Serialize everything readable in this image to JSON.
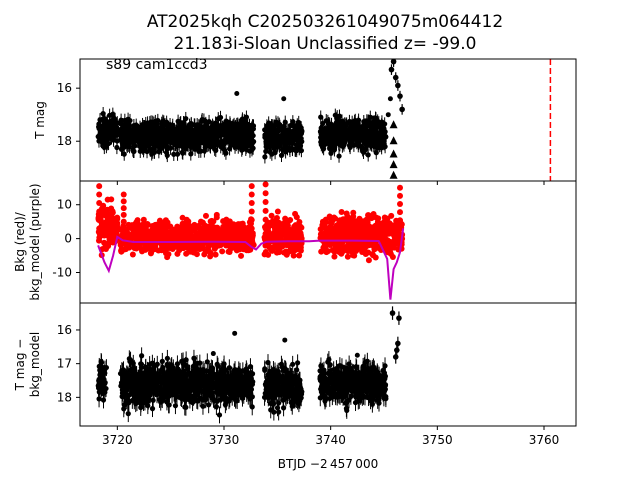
{
  "title": {
    "line1": "AT2025kqh  C202503261049075m064412",
    "line2": "21.183i-Sloan Unclassified z= -99.0"
  },
  "annotation": "s89 cam1ccd3",
  "xlabel": "BTJD −2 457 000",
  "colors": {
    "flux": "#000000",
    "bkg": "#ff0000",
    "bkg_model": "#bf00bf",
    "marker_line": "#ff0000"
  },
  "chart_data": [
    {
      "type": "scatter",
      "panel": "top",
      "ylabel": "T mag",
      "ylim": [
        19.5,
        14.9
      ],
      "y_inverted": true,
      "yticks": [
        16,
        18
      ],
      "xlim": [
        3716.5,
        3763.0
      ],
      "xticks": [
        3720,
        3730,
        3740,
        3750,
        3760
      ],
      "vline_x": 3760.6,
      "series": [
        {
          "segments": [
            {
              "x_start": 3718.2,
              "x_end": 3720.0,
              "y_center": 17.6,
              "spread": 0.55
            },
            {
              "x_start": 3720.3,
              "x_end": 3732.8,
              "y_center": 17.8,
              "spread": 0.55
            },
            {
              "x_start": 3733.8,
              "x_end": 3737.3,
              "y_center": 17.9,
              "spread": 0.6
            },
            {
              "x_start": 3739.0,
              "x_end": 3745.2,
              "y_center": 17.75,
              "spread": 0.55
            }
          ],
          "outliers": [
            {
              "x": 3731.2,
              "y": 16.2
            },
            {
              "x": 3735.6,
              "y": 16.4
            },
            {
              "x": 3745.4,
              "y": 17.0
            },
            {
              "x": 3745.6,
              "y": 16.4
            }
          ],
          "flare": [
            {
              "x": 3745.7,
              "y": 15.3
            },
            {
              "x": 3745.9,
              "y": 15.0
            },
            {
              "x": 3746.1,
              "y": 15.6
            },
            {
              "x": 3746.3,
              "y": 15.9
            },
            {
              "x": 3746.5,
              "y": 16.3
            },
            {
              "x": 3746.7,
              "y": 16.8
            }
          ],
          "upper_limits": [
            {
              "x": 3745.9,
              "y": 17.4
            },
            {
              "x": 3745.9,
              "y": 18.0
            },
            {
              "x": 3745.9,
              "y": 18.5
            },
            {
              "x": 3745.9,
              "y": 18.9
            },
            {
              "x": 3745.9,
              "y": 19.3
            }
          ]
        }
      ]
    },
    {
      "type": "scatter",
      "panel": "middle",
      "ylabel": "Bkg (red)/\nbkg_model (purple)",
      "ylim": [
        -19.0,
        17.0
      ],
      "yticks": [
        10,
        0,
        -10
      ],
      "xlim": [
        3716.5,
        3763.0
      ],
      "series": [
        {
          "name": "Bkg",
          "segments": [
            {
              "x_start": 3718.2,
              "x_end": 3720.0,
              "y_center": 3.0,
              "spread": 6.0
            },
            {
              "x_start": 3720.3,
              "x_end": 3732.8,
              "y_center": 0.5,
              "spread": 4.5
            },
            {
              "x_start": 3733.8,
              "x_end": 3737.3,
              "y_center": 0.5,
              "spread": 5.0
            },
            {
              "x_start": 3739.0,
              "x_end": 3746.7,
              "y_center": 1.0,
              "spread": 5.5
            }
          ],
          "spikes": [
            {
              "x": 3718.3,
              "y": 15.5
            },
            {
              "x": 3720.6,
              "y": 13.0
            },
            {
              "x": 3732.6,
              "y": 15.5
            },
            {
              "x": 3733.9,
              "y": 16.0
            },
            {
              "x": 3746.5,
              "y": 15.0
            }
          ]
        },
        {
          "name": "bkg_model",
          "x": [
            3718.2,
            3718.8,
            3719.2,
            3719.6,
            3720.0,
            3720.5,
            3721.5,
            3725.0,
            3729.0,
            3732.0,
            3732.6,
            3733.0,
            3733.5,
            3734.0,
            3736.0,
            3738.0,
            3739.0,
            3742.0,
            3744.5,
            3745.3,
            3745.6,
            3745.9,
            3746.2,
            3746.5,
            3746.8
          ],
          "y": [
            -2.0,
            -7.0,
            -9.5,
            -5.0,
            0.5,
            -0.5,
            -1.0,
            -1.0,
            -0.9,
            -1.0,
            -2.5,
            -3.2,
            -1.5,
            -0.9,
            -0.8,
            -0.8,
            -0.6,
            -0.6,
            -0.7,
            -6.0,
            -18.0,
            -9.0,
            -7.0,
            -4.0,
            3.0
          ]
        }
      ]
    },
    {
      "type": "scatter",
      "panel": "bottom",
      "ylabel": "T mag −\nbkg_model",
      "ylim": [
        18.85,
        15.2
      ],
      "y_inverted": true,
      "yticks": [
        16,
        17,
        18
      ],
      "xlim": [
        3716.5,
        3763.0
      ],
      "xticks": [
        3720,
        3730,
        3740,
        3750,
        3760
      ],
      "series": [
        {
          "segments": [
            {
              "x_start": 3718.2,
              "x_end": 3719.0,
              "y_center": 17.5,
              "spread": 0.55
            },
            {
              "x_start": 3720.3,
              "x_end": 3732.8,
              "y_center": 17.6,
              "spread": 0.6
            },
            {
              "x_start": 3733.8,
              "x_end": 3737.3,
              "y_center": 17.7,
              "spread": 0.6
            },
            {
              "x_start": 3739.0,
              "x_end": 3745.2,
              "y_center": 17.6,
              "spread": 0.55
            }
          ],
          "outliers": [
            {
              "x": 3731.0,
              "y": 16.1
            },
            {
              "x": 3735.7,
              "y": 16.3
            },
            {
              "x": 3729.0,
              "y": 16.7
            },
            {
              "x": 3742.5,
              "y": 16.75
            }
          ],
          "flare": [
            {
              "x": 3745.8,
              "y": 15.5
            },
            {
              "x": 3746.4,
              "y": 15.65
            },
            {
              "x": 3746.3,
              "y": 16.4
            },
            {
              "x": 3746.2,
              "y": 16.6
            },
            {
              "x": 3746.1,
              "y": 16.8
            }
          ]
        }
      ]
    }
  ]
}
